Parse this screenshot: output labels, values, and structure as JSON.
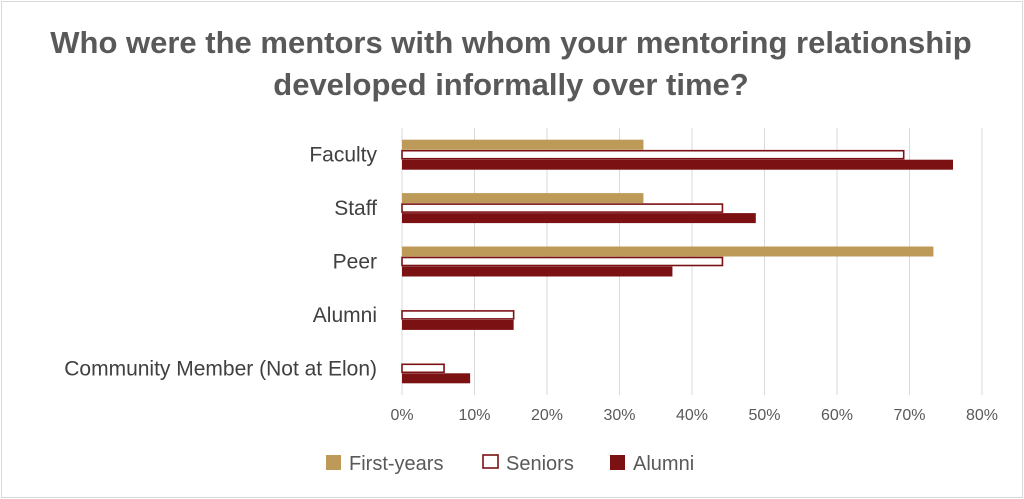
{
  "chart_data": {
    "type": "bar",
    "orientation": "horizontal",
    "title": "Who were the mentors with whom your mentoring relationship developed informally over time?",
    "categories": [
      "Faculty",
      "Staff",
      "Peer",
      "Alumni",
      "Community Member (Not at Elon)"
    ],
    "series": [
      {
        "name": "First-years",
        "values": [
          33.3,
          33.3,
          73.3,
          0,
          0
        ],
        "color": "#bd9a58",
        "style": "solid"
      },
      {
        "name": "Seniors",
        "values": [
          69.2,
          44.2,
          44.2,
          15.4,
          5.8
        ],
        "color": "#7b1113",
        "style": "outline"
      },
      {
        "name": "Alumni",
        "values": [
          76.0,
          48.8,
          37.3,
          15.4,
          9.4
        ],
        "color": "#7b1113",
        "style": "solid"
      }
    ],
    "xlim": [
      0,
      80
    ],
    "xticks": [
      "0%",
      "10%",
      "20%",
      "30%",
      "40%",
      "50%",
      "60%",
      "70%",
      "80%"
    ],
    "grid": true,
    "legend_position": "bottom"
  }
}
